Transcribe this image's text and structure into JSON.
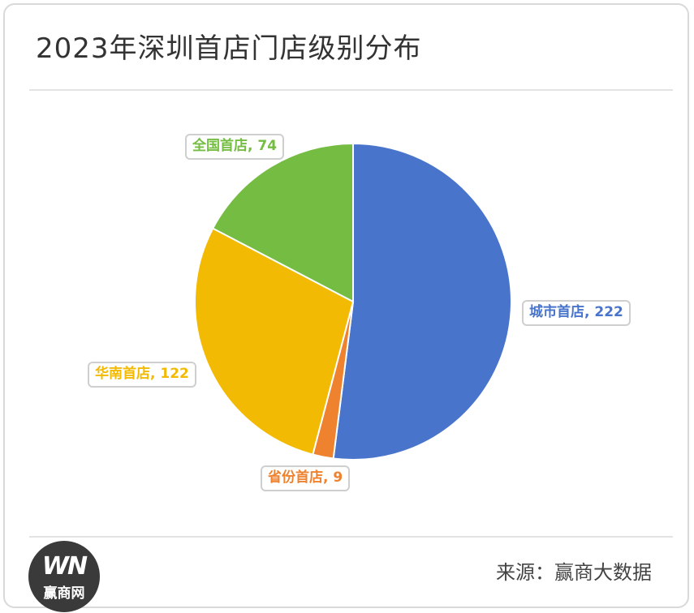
{
  "title": "2023年深圳首店门店级别分布",
  "source": "来源：赢商大数据",
  "logo": {
    "mark": "WN",
    "text": "赢商网"
  },
  "chart_data": {
    "type": "pie",
    "title": "2023年深圳首店门店级别分布",
    "slices": [
      {
        "name": "城市首店",
        "value": 222,
        "color": "#4874CB",
        "label": "城市首店, 222"
      },
      {
        "name": "省份首店",
        "value": 9,
        "color": "#EE822F",
        "label": "省份首店, 9"
      },
      {
        "name": "华南首店",
        "value": 122,
        "color": "#F2BA02",
        "label": "华南首店, 122"
      },
      {
        "name": "全国首店",
        "value": 74,
        "color": "#75BD42",
        "label": "全国首店, 74"
      }
    ]
  }
}
